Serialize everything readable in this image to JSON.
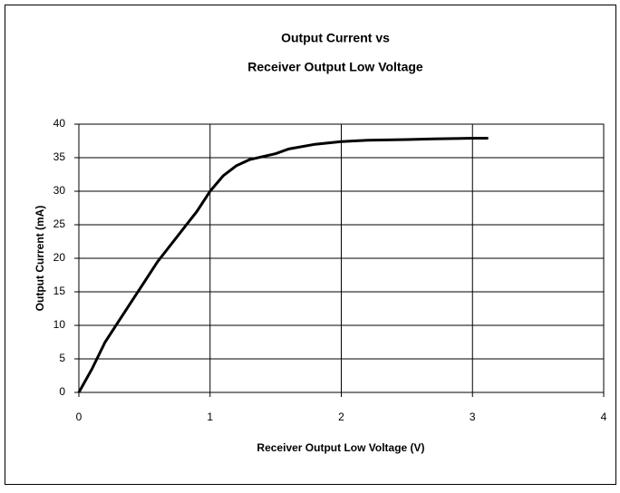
{
  "chart_data": {
    "type": "line",
    "title": [
      "Output Current vs",
      "Receiver Output Low Voltage"
    ],
    "x_label": "Receiver Output Low Voltage (V)",
    "y_label": "Output Current (mA)",
    "x": [
      0,
      0.1,
      0.2,
      0.4,
      0.5,
      0.6,
      0.8,
      0.9,
      1.0,
      1.1,
      1.2,
      1.3,
      1.5,
      1.6,
      1.8,
      2.0,
      2.2,
      2.5,
      2.7,
      3.0,
      3.12
    ],
    "series": [
      {
        "name": "Output Current",
        "color": "#000000",
        "values": [
          0,
          3.5,
          7.5,
          13.5,
          16.5,
          19.5,
          24.5,
          27,
          30,
          32.3,
          33.8,
          34.7,
          35.6,
          36.3,
          37,
          37.4,
          37.6,
          37.7,
          37.8,
          37.9,
          37.9
        ]
      }
    ],
    "xlim": [
      0,
      4
    ],
    "xticks": [
      0,
      1,
      2,
      3,
      4
    ],
    "ylim": [
      0,
      40
    ],
    "yticks": [
      0,
      5,
      10,
      15,
      20,
      25,
      30,
      35,
      40
    ],
    "grid": true
  }
}
